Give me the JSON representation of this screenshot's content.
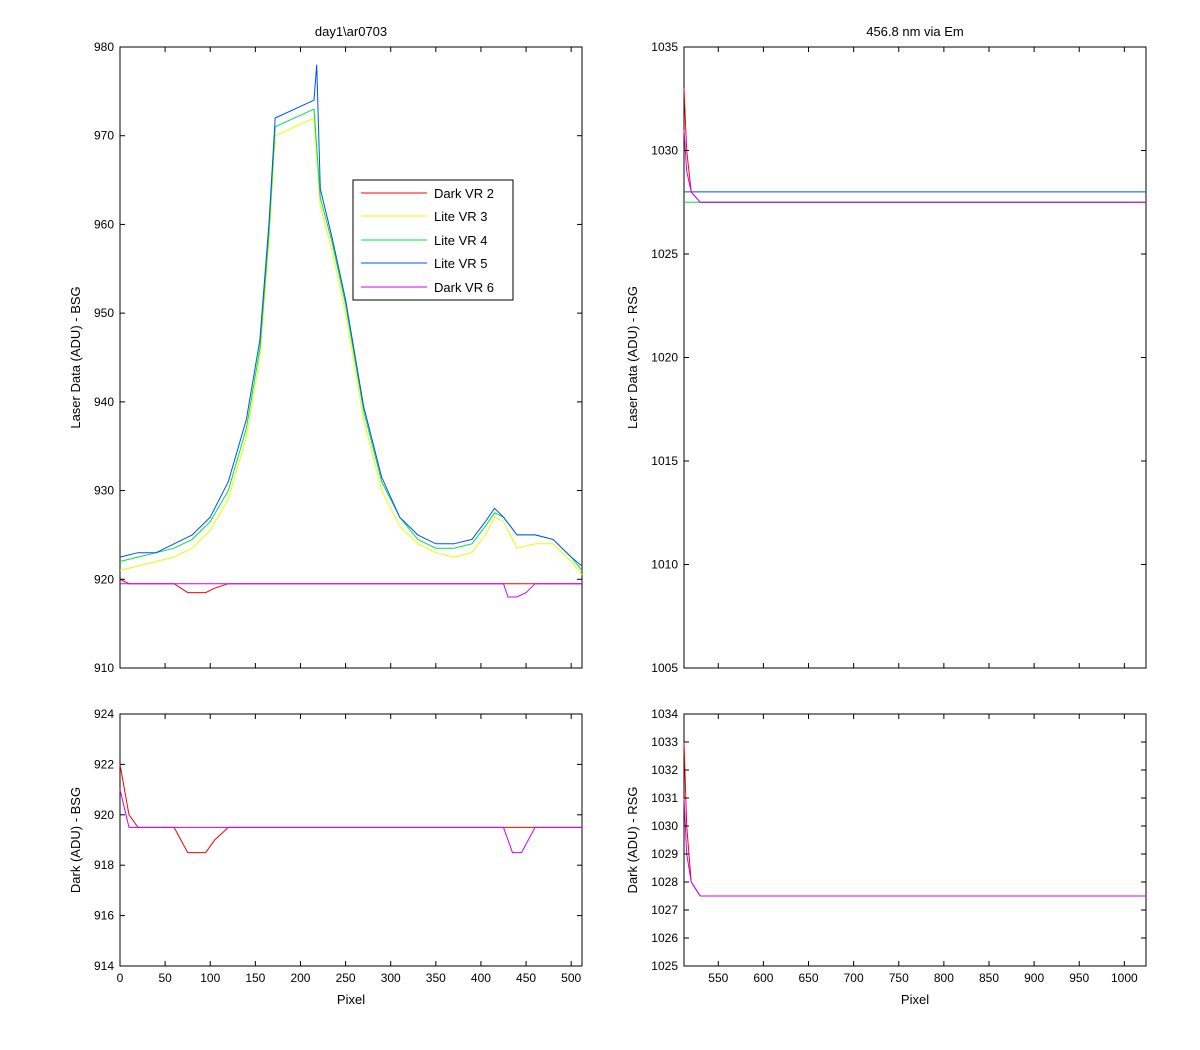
{
  "colors": {
    "dark_vr2": "#ff0000",
    "lite_vr3": "#e6ff00",
    "lite_vr4": "#00e040",
    "lite_vr5": "#0050ff",
    "dark_vr6": "#cc00ff"
  },
  "chart_data": [
    {
      "id": "top-left",
      "type": "line",
      "title": "day1\\ar0703",
      "xlabel": "",
      "ylabel": "Laser Data (ADU) - BSG",
      "xlim": [
        0,
        512
      ],
      "ylim": [
        910,
        980
      ],
      "xticks": [
        0,
        50,
        100,
        150,
        200,
        250,
        300,
        350,
        400,
        450,
        500
      ],
      "xtick_labels_visible": false,
      "yticks": [
        910,
        920,
        930,
        940,
        950,
        960,
        970,
        980
      ],
      "legend": {
        "placement": "upper-middle-right",
        "entries": [
          "Dark VR 2",
          "Lite VR 3",
          "Lite VR 4",
          "Lite VR 5",
          "Dark VR 6"
        ]
      },
      "series": [
        {
          "name": "Dark VR 2",
          "color": "#ff0000",
          "x": [
            0,
            10,
            20,
            40,
            60,
            75,
            85,
            95,
            105,
            120,
            150,
            200,
            250,
            300,
            350,
            400,
            420,
            440,
            460,
            500,
            512
          ],
          "y": [
            920,
            919.5,
            919.5,
            919.5,
            919.5,
            918.5,
            918.5,
            918.5,
            919,
            919.5,
            919.5,
            919.5,
            919.5,
            919.5,
            919.5,
            919.5,
            919.5,
            919.5,
            919.5,
            919.5,
            919.5
          ]
        },
        {
          "name": "Lite VR 3",
          "color": "#e6ff00",
          "x": [
            0,
            20,
            40,
            60,
            80,
            100,
            120,
            140,
            155,
            165,
            172,
            215,
            222,
            235,
            250,
            270,
            290,
            310,
            330,
            350,
            370,
            390,
            405,
            415,
            425,
            440,
            460,
            480,
            500,
            512
          ],
          "y": [
            921,
            921.5,
            922,
            922.5,
            923.5,
            925.5,
            929,
            936,
            945,
            958,
            970,
            972,
            962,
            957,
            950,
            938,
            930,
            926,
            924,
            923,
            922.5,
            923,
            925,
            927,
            926.5,
            923.5,
            924,
            924,
            922,
            920.5
          ]
        },
        {
          "name": "Lite VR 4",
          "color": "#00e040",
          "x": [
            0,
            20,
            40,
            60,
            80,
            100,
            120,
            140,
            155,
            165,
            172,
            215,
            222,
            235,
            250,
            270,
            290,
            310,
            330,
            350,
            370,
            390,
            405,
            415,
            425,
            440,
            460,
            480,
            500,
            512
          ],
          "y": [
            922,
            922.5,
            923,
            923.5,
            924.5,
            926.5,
            930,
            937,
            946,
            959,
            971,
            973,
            963,
            958,
            951,
            939,
            931,
            927,
            924.5,
            923.5,
            923.5,
            924,
            926,
            927.5,
            927,
            925,
            925,
            924.5,
            922.5,
            921
          ]
        },
        {
          "name": "Lite VR 5",
          "color": "#0050ff",
          "x": [
            0,
            20,
            40,
            60,
            80,
            100,
            120,
            140,
            155,
            165,
            172,
            215,
            218,
            222,
            235,
            250,
            270,
            290,
            310,
            330,
            350,
            370,
            390,
            405,
            415,
            425,
            440,
            460,
            480,
            500,
            512
          ],
          "y": [
            922.5,
            923,
            923,
            924,
            925,
            927,
            931,
            938,
            947,
            960,
            972,
            974,
            978,
            964,
            958.5,
            951.5,
            939.5,
            931.5,
            927,
            925,
            924,
            924,
            924.5,
            926.5,
            928,
            927,
            925,
            925,
            924.5,
            922.5,
            921.5
          ]
        },
        {
          "name": "Dark VR 6",
          "color": "#cc00ff",
          "x": [
            0,
            10,
            20,
            40,
            60,
            80,
            100,
            120,
            150,
            200,
            250,
            300,
            350,
            400,
            425,
            430,
            440,
            450,
            460,
            500,
            512
          ],
          "y": [
            919.5,
            919.5,
            919.5,
            919.5,
            919.5,
            919.5,
            919.5,
            919.5,
            919.5,
            919.5,
            919.5,
            919.5,
            919.5,
            919.5,
            919.5,
            918,
            918,
            918.5,
            919.5,
            919.5,
            919.5
          ]
        }
      ]
    },
    {
      "id": "top-right",
      "type": "line",
      "title": "456.8 nm via Em",
      "xlabel": "",
      "ylabel": "Laser Data (ADU) - RSG",
      "xlim": [
        512,
        1024
      ],
      "ylim": [
        1005,
        1035
      ],
      "xticks": [
        550,
        600,
        650,
        700,
        750,
        800,
        850,
        900,
        950,
        1000
      ],
      "xtick_labels_visible": false,
      "yticks": [
        1005,
        1010,
        1015,
        1020,
        1025,
        1030,
        1035
      ],
      "series": [
        {
          "name": "Dark VR 2",
          "color": "#ff0000",
          "x": [
            512,
            515,
            520,
            530,
            600,
            700,
            800,
            900,
            1000,
            1024
          ],
          "y": [
            1033,
            1030,
            1028,
            1027.5,
            1027.5,
            1027.5,
            1027.5,
            1027.5,
            1027.5,
            1027.5
          ]
        },
        {
          "name": "Lite VR 3",
          "color": "#e6ff00",
          "x": [
            512,
            520,
            600,
            700,
            800,
            900,
            1000,
            1024
          ],
          "y": [
            1028,
            1028,
            1028,
            1028,
            1028,
            1028,
            1028,
            1028
          ]
        },
        {
          "name": "Lite VR 4",
          "color": "#00e040",
          "x": [
            512,
            520,
            600,
            700,
            800,
            900,
            1000,
            1024
          ],
          "y": [
            1027.5,
            1027.5,
            1027.5,
            1027.5,
            1027.5,
            1027.5,
            1027.5,
            1027.5
          ]
        },
        {
          "name": "Lite VR 5",
          "color": "#0050ff",
          "x": [
            512,
            520,
            600,
            700,
            800,
            900,
            1000,
            1024
          ],
          "y": [
            1028,
            1028,
            1028,
            1028,
            1028,
            1028,
            1028,
            1028
          ]
        },
        {
          "name": "Dark VR 6",
          "color": "#cc00ff",
          "x": [
            512,
            515,
            520,
            530,
            600,
            700,
            800,
            900,
            1000,
            1024
          ],
          "y": [
            1031,
            1029,
            1028,
            1027.5,
            1027.5,
            1027.5,
            1027.5,
            1027.5,
            1027.5,
            1027.5
          ]
        }
      ]
    },
    {
      "id": "bottom-left",
      "type": "line",
      "title": "",
      "xlabel": "Pixel",
      "ylabel": "Dark (ADU) - BSG",
      "xlim": [
        0,
        512
      ],
      "ylim": [
        914,
        924
      ],
      "xticks": [
        0,
        50,
        100,
        150,
        200,
        250,
        300,
        350,
        400,
        450,
        500
      ],
      "xtick_labels_visible": true,
      "yticks": [
        914,
        916,
        918,
        920,
        922,
        924
      ],
      "series": [
        {
          "name": "Dark VR 2",
          "color": "#ff0000",
          "x": [
            0,
            10,
            20,
            40,
            60,
            75,
            85,
            95,
            105,
            120,
            200,
            300,
            400,
            420,
            440,
            460,
            512
          ],
          "y": [
            922,
            920,
            919.5,
            919.5,
            919.5,
            918.5,
            918.5,
            918.5,
            919,
            919.5,
            919.5,
            919.5,
            919.5,
            919.5,
            919.5,
            919.5,
            919.5
          ]
        },
        {
          "name": "Dark VR 6",
          "color": "#cc00ff",
          "x": [
            0,
            10,
            20,
            40,
            60,
            80,
            100,
            200,
            300,
            400,
            425,
            435,
            445,
            460,
            512
          ],
          "y": [
            921,
            919.5,
            919.5,
            919.5,
            919.5,
            919.5,
            919.5,
            919.5,
            919.5,
            919.5,
            919.5,
            918.5,
            918.5,
            919.5,
            919.5
          ]
        }
      ]
    },
    {
      "id": "bottom-right",
      "type": "line",
      "title": "",
      "xlabel": "Pixel",
      "ylabel": "Dark (ADU) - RSG",
      "xlim": [
        512,
        1024
      ],
      "ylim": [
        1025,
        1034
      ],
      "xticks": [
        550,
        600,
        650,
        700,
        750,
        800,
        850,
        900,
        950,
        1000
      ],
      "xtick_labels_visible": true,
      "yticks": [
        1025,
        1026,
        1027,
        1028,
        1029,
        1030,
        1031,
        1032,
        1033,
        1034
      ],
      "series": [
        {
          "name": "Dark VR 2",
          "color": "#ff0000",
          "x": [
            512,
            515,
            520,
            530,
            600,
            700,
            800,
            900,
            1000,
            1024
          ],
          "y": [
            1033,
            1030,
            1028,
            1027.5,
            1027.5,
            1027.5,
            1027.5,
            1027.5,
            1027.5,
            1027.5
          ]
        },
        {
          "name": "Dark VR 6",
          "color": "#cc00ff",
          "x": [
            512,
            515,
            520,
            530,
            600,
            700,
            800,
            900,
            1000,
            1024
          ],
          "y": [
            1031,
            1029,
            1028,
            1027.5,
            1027.5,
            1027.5,
            1027.5,
            1027.5,
            1027.5,
            1027.5
          ]
        }
      ]
    }
  ]
}
